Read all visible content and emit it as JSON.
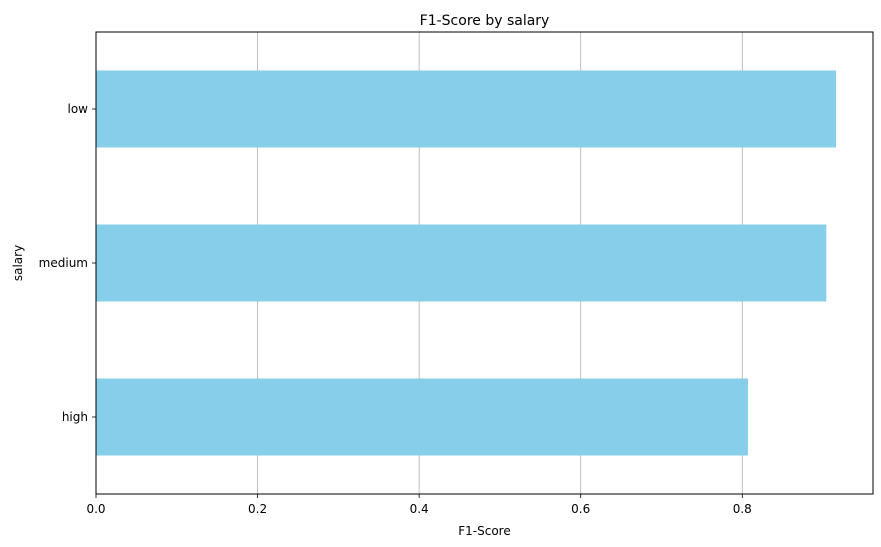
{
  "chart_data": {
    "type": "bar",
    "orientation": "horizontal",
    "title": "F1-Score by salary",
    "xlabel": "F1-Score",
    "ylabel": "salary",
    "categories": [
      "high",
      "medium",
      "low"
    ],
    "values": [
      0.807,
      0.904,
      0.916
    ],
    "xlim": [
      0,
      0.9618
    ],
    "xticks": [
      "0.0",
      "0.2",
      "0.4",
      "0.6",
      "0.8"
    ],
    "xtick_values": [
      0.0,
      0.2,
      0.4,
      0.6,
      0.8
    ],
    "grid": "x",
    "bar_color": "#87ceeb",
    "grid_color": "#b0b0b0"
  }
}
